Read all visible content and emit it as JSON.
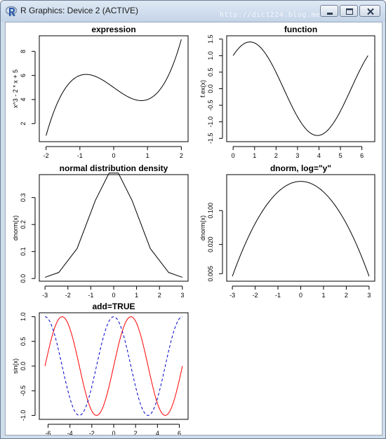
{
  "window": {
    "title": "R Graphics: Device 2 (ACTIVE)",
    "watermark": "http://dic1224.blog.me",
    "buttons": {
      "minimize": "minimize",
      "maximize": "maximize",
      "close": "close"
    }
  },
  "chart_data": [
    {
      "type": "line",
      "title": "expression",
      "xlabel": "",
      "ylabel": "x^3 - 2 * x + 5",
      "xlim": [
        -2.2,
        2.2
      ],
      "ylim": [
        0.5,
        9.3
      ],
      "xticks": [
        -2,
        -1,
        0,
        1,
        2
      ],
      "xtick_labels": [
        "-2",
        "-1",
        "0",
        "1",
        "2"
      ],
      "yticks": [
        2,
        4,
        6,
        8
      ],
      "ytick_labels": [
        "2",
        "4",
        "6",
        "8"
      ],
      "series": [
        {
          "func": "cubic",
          "from": -2,
          "to": 2,
          "color": "#000000",
          "dash": ""
        }
      ]
    },
    {
      "type": "line",
      "title": "function",
      "xlabel": "",
      "ylabel": "f.ex(x)",
      "xlim": [
        -0.3,
        6.6
      ],
      "ylim": [
        -1.6,
        1.6
      ],
      "xticks": [
        0,
        1,
        2,
        3,
        4,
        5,
        6
      ],
      "xtick_labels": [
        "0",
        "1",
        "2",
        "3",
        "4",
        "5",
        "6"
      ],
      "yticks": [
        -1.5,
        -1.0,
        -0.5,
        0.0,
        0.5,
        1.0,
        1.5
      ],
      "ytick_labels": [
        "-1.5",
        "-1.0",
        "-0.5",
        "0.0",
        "0.5",
        "1.0",
        "1.5"
      ],
      "series": [
        {
          "func": "sin_plus_cos",
          "from": 0,
          "to": 6.283,
          "color": "#000000",
          "dash": ""
        }
      ]
    },
    {
      "type": "line",
      "title": "normal distribution density",
      "xlabel": "",
      "ylabel": "dnorm(x)",
      "xlim": [
        -3.25,
        3.25
      ],
      "ylim": [
        -0.01,
        0.385
      ],
      "xticks": [
        -3,
        -2,
        -1,
        0,
        1,
        2,
        3
      ],
      "xtick_labels": [
        "-3",
        "-2",
        "-1",
        "0",
        "1",
        "2",
        "3"
      ],
      "yticks": [
        0.0,
        0.1,
        0.2,
        0.3
      ],
      "ytick_labels": [
        "0.0",
        "0.1",
        "0.2",
        "0.3"
      ],
      "series": [
        {
          "points": [
            [
              -3,
              0.0044
            ],
            [
              -2.4,
              0.0224
            ],
            [
              -1.6,
              0.1109
            ],
            [
              -0.8,
              0.2897
            ],
            [
              -0.2,
              0.391
            ],
            [
              0.2,
              0.391
            ],
            [
              0.8,
              0.2897
            ],
            [
              1.6,
              0.1109
            ],
            [
              2.4,
              0.0224
            ],
            [
              3,
              0.0044
            ]
          ],
          "color": "#000000",
          "dash": ""
        }
      ]
    },
    {
      "type": "line",
      "title": "dnorm, log=\"y\"",
      "xlabel": "",
      "ylabel": "dnorm(x)",
      "log_y": true,
      "xlim": [
        -3.25,
        3.25
      ],
      "ylim": [
        0.0035,
        0.55
      ],
      "xticks": [
        -3,
        -2,
        -1,
        0,
        1,
        2,
        3
      ],
      "xtick_labels": [
        "-3",
        "-2",
        "-1",
        "0",
        "1",
        "2",
        "3"
      ],
      "yticks": [
        0.005,
        0.02,
        0.1
      ],
      "ytick_labels": [
        "0.005",
        "0.020",
        "0.100"
      ],
      "series": [
        {
          "func": "dnorm",
          "from": -3,
          "to": 3,
          "color": "#000000",
          "dash": ""
        }
      ]
    },
    {
      "type": "line",
      "title": "add=TRUE",
      "xlabel": "",
      "ylabel": "sin(x)",
      "xlim": [
        -6.8,
        6.8
      ],
      "ylim": [
        -1.08,
        1.08
      ],
      "xticks": [
        -6,
        -4,
        -2,
        0,
        2,
        4,
        6
      ],
      "xtick_labels": [
        "-6",
        "-4",
        "-2",
        "0",
        "2",
        "4",
        "6"
      ],
      "yticks": [
        -1.0,
        -0.5,
        0.0,
        0.5,
        1.0
      ],
      "ytick_labels": [
        "-1.0",
        "-0.5",
        "0.0",
        "0.5",
        "1.0"
      ],
      "series": [
        {
          "func": "sin",
          "from": -6.283,
          "to": 6.283,
          "color": "#ff0000",
          "dash": ""
        },
        {
          "func": "cos",
          "from": -6.283,
          "to": 6.283,
          "color": "#0000cc",
          "dash": "4,3"
        }
      ]
    }
  ]
}
